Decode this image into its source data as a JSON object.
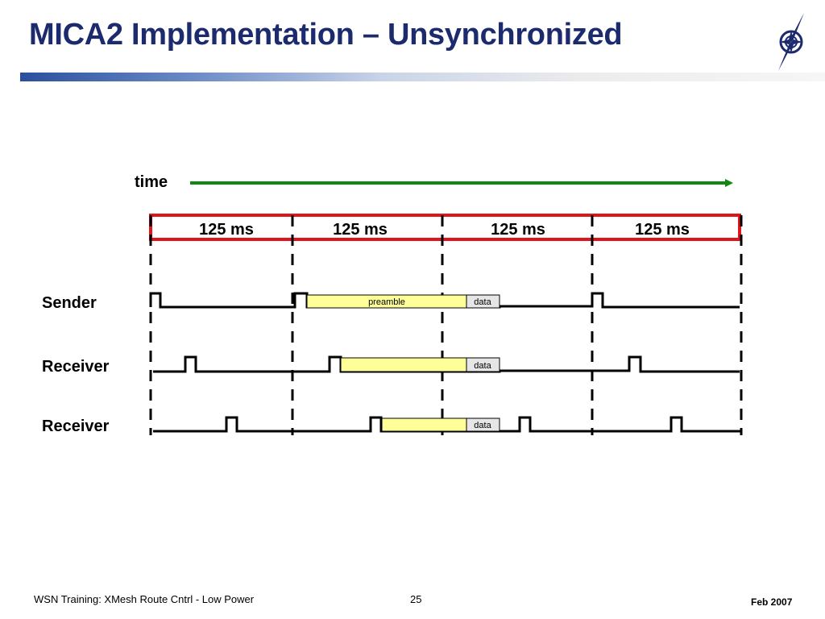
{
  "slide": {
    "title": "MICA2 Implementation – Unsynchronized",
    "footer_left": "WSN Training: XMesh Route Cntrl - Low Power",
    "page_number": "25",
    "footer_date": "Feb 2007"
  },
  "logo": {
    "icon": "compass-logo-icon",
    "color": "#1c2a6e"
  },
  "diagram": {
    "time_label": "time",
    "time_arrow_color": "#118811",
    "period_box_color": "#e0141b",
    "intervals": [
      "125 ms",
      "125 ms",
      "125 ms",
      "125 ms"
    ],
    "rows": [
      {
        "label": "Sender",
        "preamble_label": "preamble",
        "data_label": "data"
      },
      {
        "label": "Receiver",
        "data_label": "data"
      },
      {
        "label": "Receiver",
        "data_label": "data"
      }
    ],
    "preamble_color": "#ffff99",
    "data_block_color": "#e6e6e6"
  }
}
